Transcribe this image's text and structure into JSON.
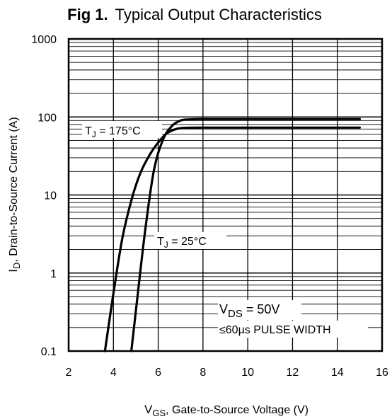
{
  "chart_data": {
    "type": "line",
    "title": {
      "prefix": "Fig 1.",
      "text": "Typical Output Characteristics"
    },
    "xlabel": {
      "main": "V",
      "sub": "GS",
      "rest": ", Gate-to-Source Voltage (V)"
    },
    "ylabel": {
      "main": "I",
      "sub": "D",
      "rest": ", Drain-to-Source Current  (A)"
    },
    "xlim": [
      2,
      16
    ],
    "ylim": [
      0.1,
      1000
    ],
    "yscale": "log",
    "grid": true,
    "x_ticks": [
      2,
      4,
      6,
      8,
      10,
      12,
      14,
      16
    ],
    "x_tick_labels": [
      "2",
      "4",
      "6",
      "8",
      "10",
      "12",
      "14",
      "16"
    ],
    "y_ticks": [
      0.1,
      1,
      10,
      100,
      1000
    ],
    "y_tick_labels": [
      "0.1",
      "1",
      "10",
      "100",
      "1000"
    ],
    "series": [
      {
        "name_main": "T",
        "name_sub": "J",
        "name_rest": " = 175°C",
        "x": [
          3.62,
          4.0,
          4.4,
          4.8,
          5.2,
          5.6,
          6.0,
          6.4,
          6.8,
          7.2,
          8.0,
          10.0,
          12.0,
          15.0
        ],
        "y": [
          0.1,
          0.55,
          2.8,
          8.5,
          19,
          32,
          47,
          62,
          70,
          72.5,
          73,
          73,
          73,
          73
        ]
      },
      {
        "name_main": "T",
        "name_sub": "J",
        "name_rest": " = 25°C",
        "x": [
          4.8,
          5.0,
          5.4,
          5.8,
          6.2,
          6.6,
          7.0,
          7.4,
          8.0,
          10.0,
          12.0,
          15.0
        ],
        "y": [
          0.1,
          0.32,
          3.2,
          20,
          50,
          76,
          90,
          93,
          94,
          94,
          94,
          94
        ]
      }
    ],
    "annotations": [
      {
        "main": "V",
        "sub": "DS",
        "rest": " = 50V"
      },
      {
        "main": "≤60µs PULSE WIDTH"
      }
    ]
  }
}
